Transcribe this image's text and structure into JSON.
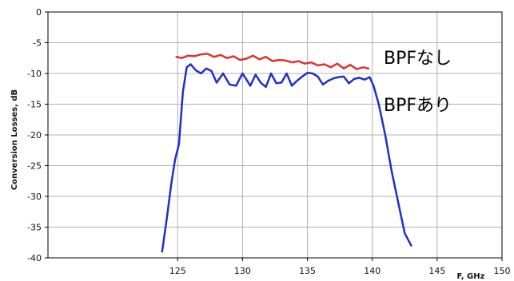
{
  "chart_data": {
    "type": "line",
    "title": "",
    "xlabel": "F, GHz",
    "ylabel": "Conversion Losses, dB",
    "xlim": [
      115,
      150
    ],
    "ylim": [
      -40,
      0
    ],
    "x_ticks": [
      125,
      130,
      135,
      140,
      145,
      150
    ],
    "x_tick_labels": [
      "125",
      "130",
      "135",
      "140",
      "145",
      "150"
    ],
    "y_ticks": [
      0,
      -5,
      -10,
      -15,
      -20,
      -25,
      -30,
      -35,
      -40
    ],
    "y_tick_labels": [
      "0",
      "-5",
      "-10",
      "-15",
      "-20",
      "-25",
      "-30",
      "-35",
      "-40"
    ],
    "grid": true,
    "legend": "none",
    "annotations": [
      {
        "text": "BPFなし",
        "color": "#000000"
      },
      {
        "text": "BPFあり",
        "color": "#000000"
      }
    ],
    "series": [
      {
        "color": "#e03030",
        "x": [
          124.9,
          125.3,
          125.8,
          126.3,
          126.8,
          127.3,
          127.8,
          128.3,
          128.8,
          129.3,
          129.8,
          130.3,
          130.8,
          131.3,
          131.8,
          132.3,
          132.8,
          133.3,
          133.8,
          134.3,
          134.8,
          135.3,
          135.8,
          136.3,
          136.8,
          137.3,
          137.8,
          138.3,
          138.8,
          139.3,
          139.7
        ],
        "y": [
          -7.3,
          -7.5,
          -7.1,
          -7.2,
          -6.9,
          -6.8,
          -7.3,
          -7.0,
          -7.5,
          -7.2,
          -7.8,
          -7.6,
          -7.1,
          -7.7,
          -7.3,
          -8.0,
          -7.8,
          -7.9,
          -8.2,
          -8.0,
          -8.4,
          -8.2,
          -8.7,
          -8.5,
          -9.0,
          -8.4,
          -9.2,
          -8.6,
          -9.3,
          -9.0,
          -9.2
        ]
      },
      {
        "color": "#2030c8",
        "x": [
          123.8,
          124.2,
          124.5,
          124.8,
          125.1,
          125.4,
          125.7,
          126.0,
          126.4,
          126.8,
          127.2,
          127.6,
          128.0,
          128.5,
          129.0,
          129.5,
          130.0,
          130.3,
          130.6,
          131.0,
          131.4,
          131.8,
          132.2,
          132.6,
          133.0,
          133.4,
          133.8,
          134.2,
          134.6,
          135.0,
          135.4,
          135.8,
          136.2,
          136.6,
          137.0,
          137.4,
          137.8,
          138.2,
          138.6,
          139.0,
          139.4,
          139.8,
          140.1,
          140.5,
          141.0,
          141.5,
          142.0,
          142.5,
          143.0
        ],
        "y": [
          -39.0,
          -33.0,
          -28.0,
          -24.0,
          -21.5,
          -13.0,
          -9.0,
          -8.5,
          -9.5,
          -10.0,
          -9.2,
          -9.6,
          -11.5,
          -10.0,
          -11.8,
          -12.0,
          -10.0,
          -11.0,
          -12.0,
          -10.2,
          -11.5,
          -12.2,
          -10.0,
          -11.6,
          -11.5,
          -10.0,
          -12.0,
          -11.2,
          -10.5,
          -9.9,
          -10.0,
          -10.5,
          -11.8,
          -11.2,
          -10.8,
          -10.6,
          -10.5,
          -11.6,
          -10.9,
          -10.7,
          -11.0,
          -10.6,
          -12.0,
          -15.0,
          -20.0,
          -26.0,
          -31.0,
          -36.0,
          -38.0
        ]
      }
    ]
  }
}
